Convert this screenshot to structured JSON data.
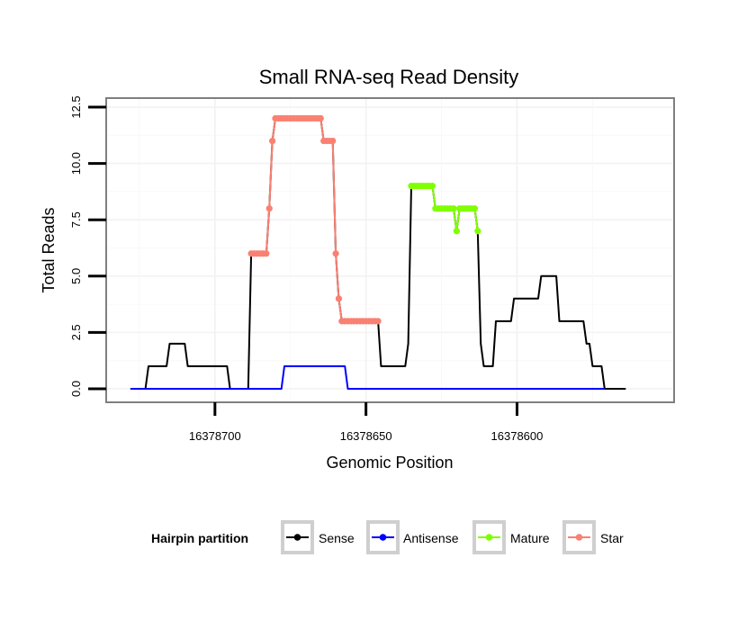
{
  "chart_data": {
    "type": "line",
    "title": "Small RNA-seq Read Density",
    "xlabel": "Genomic Position",
    "ylabel": "Total Reads",
    "x_reversed": true,
    "xlim": [
      16378736,
      16378548
    ],
    "ylim": [
      -0.6,
      12.9
    ],
    "x_ticks": [
      16378700,
      16378650,
      16378600
    ],
    "x_tick_labels": [
      "16378700",
      "16378650",
      "16378600"
    ],
    "y_ticks": [
      0,
      2.5,
      5,
      7.5,
      10,
      12.5
    ],
    "y_tick_labels": [
      "0.0",
      "2.5",
      "5.0",
      "7.5",
      "10.0",
      "12.5"
    ],
    "grid": true,
    "legend": {
      "title": "Hairpin partition",
      "position": "bottom",
      "entries": [
        {
          "name": "Sense",
          "color": "#000000"
        },
        {
          "name": "Antisense",
          "color": "#0000ff"
        },
        {
          "name": "Mature",
          "color": "#7fff00"
        },
        {
          "name": "Star",
          "color": "#fa8072"
        }
      ]
    },
    "series": [
      {
        "name": "Sense",
        "color": "#000000",
        "markers": false,
        "points": [
          [
            16378728,
            0
          ],
          [
            16378723,
            0
          ],
          [
            16378722,
            1
          ],
          [
            16378716,
            1
          ],
          [
            16378715,
            2
          ],
          [
            16378710,
            2
          ],
          [
            16378709,
            1
          ],
          [
            16378696,
            1
          ],
          [
            16378695,
            0
          ],
          [
            16378689,
            0
          ],
          [
            16378688,
            6
          ],
          [
            16378683,
            6
          ],
          [
            16378682,
            8
          ],
          [
            16378681,
            11
          ],
          [
            16378680,
            12
          ],
          [
            16378665,
            12
          ],
          [
            16378664,
            11
          ],
          [
            16378661,
            11
          ],
          [
            16378660,
            6
          ],
          [
            16378659,
            4
          ],
          [
            16378658,
            3
          ],
          [
            16378646,
            3
          ],
          [
            16378645,
            1
          ],
          [
            16378637,
            1
          ],
          [
            16378636,
            2
          ],
          [
            16378635,
            9
          ],
          [
            16378628,
            9
          ],
          [
            16378627,
            8
          ],
          [
            16378621,
            8
          ],
          [
            16378620,
            7
          ],
          [
            16378619,
            8
          ],
          [
            16378614,
            8
          ],
          [
            16378613,
            7
          ],
          [
            16378612,
            2
          ],
          [
            16378611,
            1
          ],
          [
            16378608,
            1
          ],
          [
            16378607,
            3
          ],
          [
            16378602,
            3
          ],
          [
            16378601,
            4
          ],
          [
            16378593,
            4
          ],
          [
            16378592,
            5
          ],
          [
            16378587,
            5
          ],
          [
            16378586,
            3
          ],
          [
            16378578,
            3
          ],
          [
            16378577,
            2
          ],
          [
            16378576,
            2
          ],
          [
            16378575,
            1
          ],
          [
            16378572,
            1
          ],
          [
            16378571,
            0
          ],
          [
            16378564,
            0
          ]
        ]
      },
      {
        "name": "Antisense",
        "color": "#0000ff",
        "markers": false,
        "points": [
          [
            16378728,
            0
          ],
          [
            16378678,
            0
          ],
          [
            16378677,
            1
          ],
          [
            16378657,
            1
          ],
          [
            16378656,
            0
          ],
          [
            16378571,
            0
          ]
        ]
      },
      {
        "name": "Mature",
        "color": "#7fff00",
        "markers": true,
        "points": [
          [
            16378635,
            9
          ],
          [
            16378634,
            9
          ],
          [
            16378633,
            9
          ],
          [
            16378632,
            9
          ],
          [
            16378631,
            9
          ],
          [
            16378630,
            9
          ],
          [
            16378629,
            9
          ],
          [
            16378628,
            9
          ],
          [
            16378627,
            8
          ],
          [
            16378626,
            8
          ],
          [
            16378625,
            8
          ],
          [
            16378624,
            8
          ],
          [
            16378623,
            8
          ],
          [
            16378622,
            8
          ],
          [
            16378621,
            8
          ],
          [
            16378620,
            7
          ],
          [
            16378619,
            8
          ],
          [
            16378618,
            8
          ],
          [
            16378617,
            8
          ],
          [
            16378616,
            8
          ],
          [
            16378615,
            8
          ],
          [
            16378614,
            8
          ],
          [
            16378613,
            7
          ]
        ]
      },
      {
        "name": "Star",
        "color": "#fa8072",
        "markers": true,
        "points": [
          [
            16378688,
            6
          ],
          [
            16378687,
            6
          ],
          [
            16378686,
            6
          ],
          [
            16378685,
            6
          ],
          [
            16378684,
            6
          ],
          [
            16378683,
            6
          ],
          [
            16378682,
            8
          ],
          [
            16378681,
            11
          ],
          [
            16378680,
            12
          ],
          [
            16378679,
            12
          ],
          [
            16378678,
            12
          ],
          [
            16378677,
            12
          ],
          [
            16378676,
            12
          ],
          [
            16378675,
            12
          ],
          [
            16378674,
            12
          ],
          [
            16378673,
            12
          ],
          [
            16378672,
            12
          ],
          [
            16378671,
            12
          ],
          [
            16378670,
            12
          ],
          [
            16378669,
            12
          ],
          [
            16378668,
            12
          ],
          [
            16378667,
            12
          ],
          [
            16378666,
            12
          ],
          [
            16378665,
            12
          ],
          [
            16378664,
            11
          ],
          [
            16378663,
            11
          ],
          [
            16378662,
            11
          ],
          [
            16378661,
            11
          ],
          [
            16378660,
            6
          ],
          [
            16378659,
            4
          ],
          [
            16378658,
            3
          ],
          [
            16378657,
            3
          ],
          [
            16378656,
            3
          ],
          [
            16378655,
            3
          ],
          [
            16378654,
            3
          ],
          [
            16378653,
            3
          ],
          [
            16378652,
            3
          ],
          [
            16378651,
            3
          ],
          [
            16378650,
            3
          ],
          [
            16378649,
            3
          ],
          [
            16378648,
            3
          ],
          [
            16378647,
            3
          ],
          [
            16378646,
            3
          ]
        ]
      }
    ]
  }
}
